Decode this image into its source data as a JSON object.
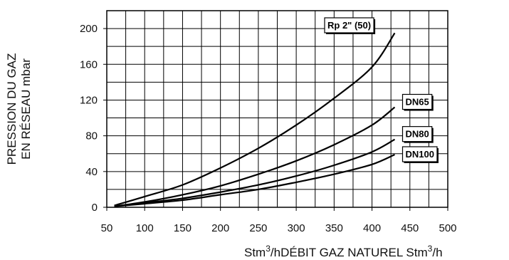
{
  "chart_data": {
    "type": "line",
    "xlabel": "Stm³/hDÉBIT GAZ NATUREL Stm³/h",
    "xlabel_parts": {
      "a": "Stm",
      "b": "3",
      "c": "/hDÉBIT GAZ NATUREL Stm",
      "d": "3",
      "e": "/h"
    },
    "ylabel_line1": "PRESSION DU GAZ",
    "ylabel_line2": "EN RÉSEAU mbar",
    "xlim": [
      50,
      500
    ],
    "ylim": [
      0,
      220
    ],
    "x_ticks": [
      "50",
      "100",
      "150",
      "200",
      "250",
      "300",
      "350",
      "400",
      "450",
      "500"
    ],
    "y_ticks": [
      "0",
      "40",
      "80",
      "120",
      "160",
      "200"
    ],
    "grid": true,
    "series": [
      {
        "name": "Rp 2\" (50)",
        "x": [
          60,
          100,
          150,
          200,
          250,
          300,
          350,
          400,
          430
        ],
        "y": [
          2,
          12,
          25,
          44,
          66,
          92,
          122,
          157,
          195
        ]
      },
      {
        "name": "DN65",
        "x": [
          60,
          100,
          150,
          200,
          250,
          300,
          350,
          400,
          430
        ],
        "y": [
          1,
          6,
          14,
          24,
          37,
          52,
          70,
          92,
          112
        ]
      },
      {
        "name": "DN80",
        "x": [
          60,
          100,
          150,
          200,
          250,
          300,
          350,
          400,
          430
        ],
        "y": [
          1,
          5,
          10,
          17,
          25,
          35,
          47,
          62,
          76
        ]
      },
      {
        "name": "DN100",
        "x": [
          60,
          100,
          150,
          200,
          250,
          300,
          350,
          400,
          430
        ],
        "y": [
          1,
          4,
          8,
          14,
          20,
          28,
          37,
          48,
          59
        ]
      }
    ]
  }
}
